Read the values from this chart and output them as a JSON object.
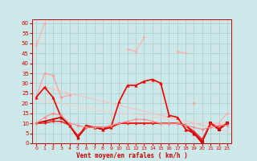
{
  "xlabel": "Vent moyen/en rafales ( km/h )",
  "x": [
    0,
    1,
    2,
    3,
    4,
    5,
    6,
    7,
    8,
    9,
    10,
    11,
    12,
    13,
    14,
    15,
    16,
    17,
    18,
    19,
    20,
    21,
    22,
    23
  ],
  "bg_color": "#cce8e8",
  "grid_color": "#aacccc",
  "text_color": "#cc0000",
  "ylim": [
    0,
    62
  ],
  "yticks": [
    0,
    5,
    10,
    15,
    20,
    25,
    30,
    35,
    40,
    45,
    50,
    55,
    60
  ],
  "series": [
    {
      "values": [
        49,
        60,
        null,
        null,
        null,
        null,
        null,
        null,
        null,
        null,
        null,
        47,
        46,
        53,
        null,
        null,
        null,
        46,
        45,
        null,
        null,
        null,
        null,
        null
      ],
      "color": "#ffaaaa",
      "lw": 0.8,
      "marker": "D",
      "ms": 2.0
    },
    {
      "values": [
        null,
        null,
        null,
        null,
        null,
        null,
        null,
        null,
        null,
        null,
        null,
        null,
        null,
        null,
        null,
        null,
        null,
        null,
        null,
        null,
        null,
        10,
        10,
        15
      ],
      "color": "#ffaaaa",
      "lw": 0.8,
      "marker": "D",
      "ms": 2.0
    },
    {
      "values": [
        23,
        35,
        34,
        23,
        24,
        null,
        null,
        null,
        null,
        null,
        null,
        null,
        null,
        null,
        null,
        null,
        null,
        null,
        null,
        20,
        null,
        null,
        null,
        null
      ],
      "color": "#ff9999",
      "lw": 0.8,
      "marker": "D",
      "ms": 2.0
    },
    {
      "values": [
        29,
        28,
        27,
        26,
        25,
        24,
        23,
        22,
        21,
        20,
        19,
        18,
        17,
        16,
        15,
        14,
        13,
        12,
        11,
        10,
        9,
        8,
        7,
        6
      ],
      "color": "#ffbbbb",
      "lw": 0.7,
      "marker": null,
      "ms": 0
    },
    {
      "values": [
        22,
        21,
        21,
        20,
        19,
        18,
        18,
        17,
        16,
        16,
        15,
        15,
        14,
        14,
        13,
        13,
        12,
        12,
        11,
        11,
        10,
        10,
        10,
        10
      ],
      "color": "#ffcccc",
      "lw": 0.7,
      "marker": null,
      "ms": 0
    },
    {
      "values": [
        23,
        28,
        23,
        13,
        9,
        3,
        9,
        8,
        7,
        8,
        21,
        29,
        29,
        31,
        32,
        30,
        14,
        13,
        7,
        5,
        0,
        null,
        null,
        null
      ],
      "color": "#ee0000",
      "lw": 1.2,
      "marker": "^",
      "ms": 3.0
    },
    {
      "values": [
        null,
        null,
        null,
        null,
        null,
        null,
        null,
        null,
        null,
        null,
        null,
        null,
        null,
        null,
        null,
        null,
        null,
        null,
        null,
        null,
        1,
        10,
        7,
        10
      ],
      "color": "#cc0000",
      "lw": 1.2,
      "marker": "s",
      "ms": 2.5
    },
    {
      "values": [
        10,
        11,
        12,
        13,
        9,
        3,
        8,
        8,
        7,
        8,
        10,
        10,
        10,
        10,
        10,
        10,
        10,
        10,
        9,
        5,
        1,
        10,
        7,
        10
      ],
      "color": "#cc0000",
      "lw": 1.3,
      "marker": "D",
      "ms": 2.0
    },
    {
      "values": [
        10,
        10,
        11,
        11,
        9,
        4,
        8,
        8,
        8,
        8,
        10,
        10,
        10,
        10,
        10,
        10,
        10,
        10,
        9,
        6,
        2,
        10,
        8,
        10
      ],
      "color": "#ee2222",
      "lw": 1.0,
      "marker": "D",
      "ms": 1.5
    },
    {
      "values": [
        10,
        13,
        15,
        14,
        10,
        9,
        8,
        8,
        8,
        9,
        10,
        11,
        12,
        12,
        11,
        10,
        10,
        10,
        9,
        8,
        7,
        8,
        9,
        9
      ],
      "color": "#ff8888",
      "lw": 0.8,
      "marker": "D",
      "ms": 2.0
    }
  ]
}
